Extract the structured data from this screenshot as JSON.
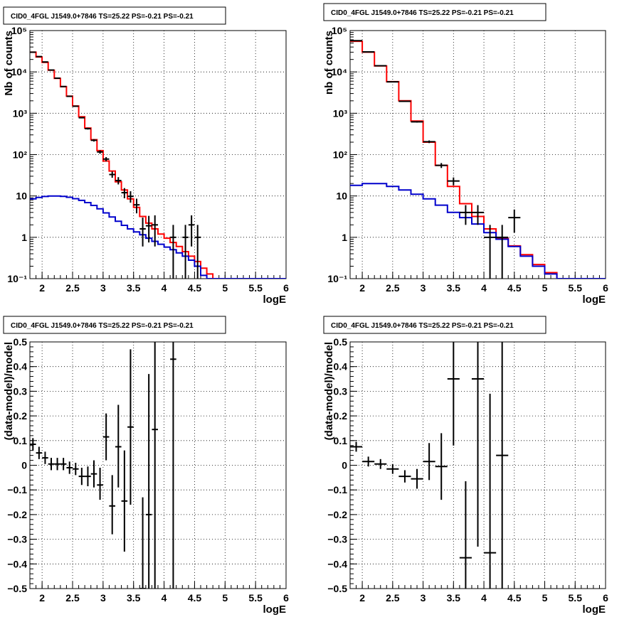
{
  "colors": {
    "model_total": "#ff0000",
    "model_source": "#0000cc",
    "data": "#000000",
    "grid": "#000000"
  },
  "chart_data": [
    {
      "id": "tl",
      "type": "line",
      "title": "CID0_4FGL J1549.0+7846 TS=25.22 PS=-0.21 PS=-0.21",
      "xlabel": "logE",
      "ylabel": "Nb of counts",
      "xlim": [
        1.8,
        6.0
      ],
      "ylim": [
        0.1,
        100000
      ],
      "yscale": "log",
      "grid": true,
      "xticks": [
        "2",
        "2.5",
        "3",
        "3.5",
        "4",
        "4.5",
        "5",
        "5.5",
        "6"
      ],
      "yticks": [
        "10⁻¹",
        "1",
        "10",
        "10²",
        "10³",
        "10⁴",
        "10⁵"
      ],
      "series": [
        {
          "role": "total",
          "style": "step",
          "bin_width": 0.1,
          "x": [
            1.85,
            1.95,
            2.05,
            2.15,
            2.25,
            2.35,
            2.45,
            2.55,
            2.65,
            2.75,
            2.85,
            2.95,
            3.05,
            3.15,
            3.25,
            3.35,
            3.45,
            3.55,
            3.65,
            3.75,
            3.85,
            3.95,
            4.05,
            4.15,
            4.25,
            4.35,
            4.45,
            4.55,
            4.65,
            4.75,
            4.85,
            4.95,
            5.05,
            5.15,
            5.25,
            5.35,
            5.45,
            5.55,
            5.65,
            5.75,
            5.85,
            5.95
          ],
          "values": [
            30000,
            23000,
            17000,
            11000,
            7000,
            4400,
            2600,
            1500,
            820,
            440,
            230,
            125,
            70,
            40,
            22,
            14,
            8.5,
            5.3,
            3.2,
            2.2,
            1.6,
            1.2,
            0.95,
            0.75,
            0.6,
            0.45,
            0.35,
            0.26,
            0.18,
            0.13,
            0.1,
            0.1,
            0.1,
            0.1,
            0.1,
            0.1,
            0.1,
            0.1,
            0.1,
            0.1,
            0.1,
            0.1
          ]
        },
        {
          "role": "source",
          "style": "step",
          "bin_width": 0.1,
          "x": [
            1.85,
            1.95,
            2.05,
            2.15,
            2.25,
            2.35,
            2.45,
            2.55,
            2.65,
            2.75,
            2.85,
            2.95,
            3.05,
            3.15,
            3.25,
            3.35,
            3.45,
            3.55,
            3.65,
            3.75,
            3.85,
            3.95,
            4.05,
            4.15,
            4.25,
            4.35,
            4.45,
            4.55,
            4.65,
            4.75,
            4.85,
            4.95,
            5.05,
            5.15,
            5.25,
            5.35,
            5.45,
            5.55,
            5.65,
            5.75,
            5.85,
            5.95
          ],
          "values": [
            8.5,
            9.2,
            9.7,
            10,
            10,
            9.8,
            9.3,
            8.6,
            7.8,
            6.9,
            5.9,
            4.9,
            3.9,
            3.1,
            2.45,
            1.95,
            1.6,
            1.35,
            1.15,
            0.95,
            0.8,
            0.68,
            0.58,
            0.5,
            0.42,
            0.35,
            0.28,
            0.2,
            0.12,
            0.1,
            0.1,
            0.1,
            0.1,
            0.1,
            0.1,
            0.1,
            0.1,
            0.1,
            0.1,
            0.1,
            0.1,
            0.1
          ]
        }
      ],
      "points": [
        {
          "x": 1.85,
          "y": 30000,
          "xerr": 0.05,
          "ylo": 29800,
          "yhi": 30200
        },
        {
          "x": 1.95,
          "y": 23500,
          "xerr": 0.05,
          "ylo": 23300,
          "yhi": 23700
        },
        {
          "x": 2.05,
          "y": 17400,
          "xerr": 0.05,
          "ylo": 17200,
          "yhi": 17600
        },
        {
          "x": 2.15,
          "y": 11100,
          "xerr": 0.05,
          "ylo": 10950,
          "yhi": 11250
        },
        {
          "x": 2.25,
          "y": 7050,
          "xerr": 0.05,
          "ylo": 6950,
          "yhi": 7150
        },
        {
          "x": 2.35,
          "y": 4430,
          "xerr": 0.05,
          "ylo": 4360,
          "yhi": 4500
        },
        {
          "x": 2.45,
          "y": 2570,
          "xerr": 0.05,
          "ylo": 2520,
          "yhi": 2620
        },
        {
          "x": 2.55,
          "y": 1480,
          "xerr": 0.05,
          "ylo": 1440,
          "yhi": 1520
        },
        {
          "x": 2.65,
          "y": 780,
          "xerr": 0.05,
          "ylo": 752,
          "yhi": 808
        },
        {
          "x": 2.75,
          "y": 425,
          "xerr": 0.05,
          "ylo": 404,
          "yhi": 446
        },
        {
          "x": 2.85,
          "y": 222,
          "xerr": 0.05,
          "ylo": 207,
          "yhi": 237
        },
        {
          "x": 2.95,
          "y": 116,
          "xerr": 0.05,
          "ylo": 105,
          "yhi": 127
        },
        {
          "x": 3.05,
          "y": 78,
          "xerr": 0.05,
          "ylo": 69,
          "yhi": 87
        },
        {
          "x": 3.15,
          "y": 33,
          "xerr": 0.05,
          "ylo": 27.5,
          "yhi": 39
        },
        {
          "x": 3.25,
          "y": 23.6,
          "xerr": 0.05,
          "ylo": 19,
          "yhi": 28.5
        },
        {
          "x": 3.35,
          "y": 12,
          "xerr": 0.05,
          "ylo": 8.8,
          "yhi": 15.5
        },
        {
          "x": 3.45,
          "y": 9.8,
          "xerr": 0.05,
          "ylo": 6.9,
          "yhi": 13
        },
        {
          "x": 3.55,
          "y": 6.1,
          "xerr": 0.05,
          "ylo": 3.8,
          "yhi": 8.6
        },
        {
          "x": 3.65,
          "y": 1.6,
          "xerr": 0.05,
          "ylo": 0.6,
          "yhi": 3.0
        },
        {
          "x": 3.75,
          "y": 1.9,
          "xerr": 0.05,
          "ylo": 0.75,
          "yhi": 3.3
        },
        {
          "x": 3.85,
          "y": 2.0,
          "xerr": 0.05,
          "ylo": 0.6,
          "yhi": 3.4
        },
        {
          "x": 4.15,
          "y": 1.0,
          "xerr": 0.05,
          "ylo": 0.1,
          "yhi": 2.0
        },
        {
          "x": 4.35,
          "y": 1.0,
          "xerr": 0.05,
          "ylo": 0.1,
          "yhi": 2.0
        },
        {
          "x": 4.45,
          "y": 2.0,
          "xerr": 0.05,
          "ylo": 0.6,
          "yhi": 3.4
        },
        {
          "x": 4.55,
          "y": 1.0,
          "xerr": 0.05,
          "ylo": 0.1,
          "yhi": 2.0
        }
      ]
    },
    {
      "id": "tr",
      "type": "line",
      "title": "CID0_4FGL J1549.0+7846 TS=25.22 PS=-0.21 PS=-0.21",
      "xlabel": "logE",
      "ylabel": "nb of counts",
      "xlim": [
        1.8,
        6.0
      ],
      "ylim": [
        0.1,
        100000
      ],
      "yscale": "log",
      "grid": true,
      "xticks": [
        "2",
        "2.5",
        "3",
        "3.5",
        "4",
        "4.5",
        "5",
        "5.5",
        "6"
      ],
      "yticks": [
        "10⁻¹",
        "1",
        "10",
        "10²",
        "10³",
        "10⁴",
        "10⁵"
      ],
      "series": [
        {
          "role": "total",
          "style": "step",
          "bin_width": 0.2,
          "x": [
            1.9,
            2.1,
            2.3,
            2.5,
            2.7,
            2.9,
            3.1,
            3.3,
            3.5,
            3.7,
            3.9,
            4.1,
            4.3,
            4.5,
            4.7,
            4.9,
            5.1,
            5.3,
            5.5,
            5.7,
            5.9
          ],
          "values": [
            55000,
            30000,
            14000,
            5800,
            2000,
            650,
            200,
            55,
            17,
            6.5,
            3.2,
            1.6,
            0.95,
            0.62,
            0.38,
            0.22,
            0.14,
            0.1,
            0.1,
            0.1,
            0.1
          ]
        },
        {
          "role": "source",
          "style": "step",
          "bin_width": 0.2,
          "x": [
            1.9,
            2.1,
            2.3,
            2.5,
            2.7,
            2.9,
            3.1,
            3.3,
            3.5,
            3.7,
            3.9,
            4.1,
            4.3,
            4.5,
            4.7,
            4.9,
            5.1,
            5.3,
            5.5,
            5.7,
            5.9
          ],
          "values": [
            18,
            20,
            20,
            17,
            14,
            11,
            8.5,
            6,
            4,
            3,
            2.1,
            1.3,
            0.9,
            0.6,
            0.35,
            0.2,
            0.13,
            0.1,
            0.1,
            0.1,
            0.1
          ]
        }
      ],
      "points": [
        {
          "x": 1.9,
          "y": 57000,
          "xerr": 0.1,
          "ylo": 56700,
          "yhi": 57300
        },
        {
          "x": 2.1,
          "y": 30500,
          "xerr": 0.1,
          "ylo": 30300,
          "yhi": 30700
        },
        {
          "x": 2.3,
          "y": 14100,
          "xerr": 0.1,
          "ylo": 13950,
          "yhi": 14250
        },
        {
          "x": 2.5,
          "y": 5750,
          "xerr": 0.1,
          "ylo": 5670,
          "yhi": 5830
        },
        {
          "x": 2.7,
          "y": 1950,
          "xerr": 0.1,
          "ylo": 1905,
          "yhi": 1995
        },
        {
          "x": 2.9,
          "y": 620,
          "xerr": 0.1,
          "ylo": 595,
          "yhi": 645
        },
        {
          "x": 3.1,
          "y": 205,
          "xerr": 0.1,
          "ylo": 190,
          "yhi": 220
        },
        {
          "x": 3.3,
          "y": 55,
          "xerr": 0.1,
          "ylo": 47.5,
          "yhi": 62.5
        },
        {
          "x": 3.5,
          "y": 23,
          "xerr": 0.1,
          "ylo": 18,
          "yhi": 28
        },
        {
          "x": 3.7,
          "y": 4,
          "xerr": 0.1,
          "ylo": 2,
          "yhi": 6
        },
        {
          "x": 3.9,
          "y": 4,
          "xerr": 0.1,
          "ylo": 2,
          "yhi": 6
        },
        {
          "x": 4.1,
          "y": 1.0,
          "xerr": 0.1,
          "ylo": 0.1,
          "yhi": 2.0
        },
        {
          "x": 4.3,
          "y": 1.0,
          "xerr": 0.1,
          "ylo": 0.1,
          "yhi": 2.0
        },
        {
          "x": 4.5,
          "y": 3,
          "xerr": 0.1,
          "ylo": 1.3,
          "yhi": 4.7
        }
      ]
    },
    {
      "id": "bl",
      "type": "scatter",
      "title": "CID0_4FGL J1549.0+7846 TS=25.22 PS=-0.21 PS=-0.21",
      "xlabel": "logE",
      "ylabel": "(data-model)/model",
      "xlim": [
        1.8,
        6.0
      ],
      "ylim": [
        -0.5,
        0.5
      ],
      "yscale": "linear",
      "grid": true,
      "xticks": [
        "2",
        "2.5",
        "3",
        "3.5",
        "4",
        "4.5",
        "5",
        "5.5",
        "6"
      ],
      "yticks": [
        "−0.5",
        "−0.4",
        "−0.3",
        "−0.2",
        "−0.1",
        "0",
        "0.1",
        "0.2",
        "0.3",
        "0.4",
        "0.5"
      ],
      "points": [
        {
          "x": 1.85,
          "y": 0.085,
          "xerr": 0.05,
          "ylo": 0.06,
          "yhi": 0.11
        },
        {
          "x": 1.95,
          "y": 0.05,
          "xerr": 0.05,
          "ylo": 0.025,
          "yhi": 0.075
        },
        {
          "x": 2.05,
          "y": 0.03,
          "xerr": 0.05,
          "ylo": 0.005,
          "yhi": 0.055
        },
        {
          "x": 2.15,
          "y": 0.005,
          "xerr": 0.05,
          "ylo": -0.02,
          "yhi": 0.03
        },
        {
          "x": 2.25,
          "y": 0.005,
          "xerr": 0.05,
          "ylo": -0.02,
          "yhi": 0.03
        },
        {
          "x": 2.35,
          "y": 0.005,
          "xerr": 0.05,
          "ylo": -0.02,
          "yhi": 0.03
        },
        {
          "x": 2.45,
          "y": -0.01,
          "xerr": 0.05,
          "ylo": -0.035,
          "yhi": 0.015
        },
        {
          "x": 2.55,
          "y": -0.015,
          "xerr": 0.05,
          "ylo": -0.04,
          "yhi": 0.01
        },
        {
          "x": 2.65,
          "y": -0.045,
          "xerr": 0.05,
          "ylo": -0.08,
          "yhi": -0.01
        },
        {
          "x": 2.75,
          "y": -0.045,
          "xerr": 0.05,
          "ylo": -0.085,
          "yhi": -0.005
        },
        {
          "x": 2.85,
          "y": -0.035,
          "xerr": 0.05,
          "ylo": -0.09,
          "yhi": 0.02
        },
        {
          "x": 2.95,
          "y": -0.08,
          "xerr": 0.05,
          "ylo": -0.14,
          "yhi": -0.01
        },
        {
          "x": 3.05,
          "y": 0.115,
          "xerr": 0.05,
          "ylo": 0.02,
          "yhi": 0.21
        },
        {
          "x": 3.15,
          "y": -0.165,
          "xerr": 0.05,
          "ylo": -0.28,
          "yhi": -0.04
        },
        {
          "x": 3.25,
          "y": 0.075,
          "xerr": 0.05,
          "ylo": -0.09,
          "yhi": 0.245
        },
        {
          "x": 3.35,
          "y": -0.145,
          "xerr": 0.05,
          "ylo": -0.35,
          "yhi": 0.06
        },
        {
          "x": 3.45,
          "y": 0.155,
          "xerr": 0.05,
          "ylo": -0.16,
          "yhi": 0.47
        },
        {
          "x": 3.65,
          "y": -0.5,
          "xerr": 0.05,
          "ylo": -0.5,
          "yhi": -0.13
        },
        {
          "x": 3.75,
          "y": -0.2,
          "xerr": 0.05,
          "ylo": -0.5,
          "yhi": 0.37
        },
        {
          "x": 3.85,
          "y": 0.145,
          "xerr": 0.05,
          "ylo": -0.5,
          "yhi": 0.5
        },
        {
          "x": 4.15,
          "y": 0.43,
          "xerr": 0.05,
          "ylo": -0.5,
          "yhi": 0.5
        }
      ]
    },
    {
      "id": "br",
      "type": "scatter",
      "title": "CID0_4FGL J1549.0+7846 TS=25.22 PS=-0.21 PS=-0.21",
      "xlabel": "logE",
      "ylabel": "(data-model)/model",
      "xlim": [
        1.8,
        6.0
      ],
      "ylim": [
        -0.5,
        0.5
      ],
      "yscale": "linear",
      "grid": true,
      "xticks": [
        "2",
        "2.5",
        "3",
        "3.5",
        "4",
        "4.5",
        "5",
        "5.5",
        "6"
      ],
      "yticks": [
        "−0.5",
        "−0.4",
        "−0.3",
        "−0.2",
        "−0.1",
        "0",
        "0.1",
        "0.2",
        "0.3",
        "0.4",
        "0.5"
      ],
      "points": [
        {
          "x": 1.9,
          "y": 0.075,
          "xerr": 0.1,
          "ylo": 0.055,
          "yhi": 0.095
        },
        {
          "x": 2.1,
          "y": 0.015,
          "xerr": 0.1,
          "ylo": -0.005,
          "yhi": 0.035
        },
        {
          "x": 2.3,
          "y": 0.005,
          "xerr": 0.1,
          "ylo": -0.015,
          "yhi": 0.025
        },
        {
          "x": 2.5,
          "y": -0.015,
          "xerr": 0.1,
          "ylo": -0.035,
          "yhi": 0.005
        },
        {
          "x": 2.7,
          "y": -0.045,
          "xerr": 0.1,
          "ylo": -0.07,
          "yhi": -0.02
        },
        {
          "x": 2.9,
          "y": -0.055,
          "xerr": 0.1,
          "ylo": -0.095,
          "yhi": -0.015
        },
        {
          "x": 3.1,
          "y": 0.015,
          "xerr": 0.1,
          "ylo": -0.06,
          "yhi": 0.09
        },
        {
          "x": 3.3,
          "y": -0.005,
          "xerr": 0.1,
          "ylo": -0.14,
          "yhi": 0.13
        },
        {
          "x": 3.5,
          "y": 0.35,
          "xerr": 0.1,
          "ylo": 0.08,
          "yhi": 0.5
        },
        {
          "x": 3.7,
          "y": -0.375,
          "xerr": 0.1,
          "ylo": -0.5,
          "yhi": -0.065
        },
        {
          "x": 3.9,
          "y": 0.35,
          "xerr": 0.1,
          "ylo": -0.33,
          "yhi": 0.5
        },
        {
          "x": 4.1,
          "y": -0.355,
          "xerr": 0.1,
          "ylo": -0.5,
          "yhi": 0.29
        },
        {
          "x": 4.3,
          "y": 0.04,
          "xerr": 0.1,
          "ylo": -0.5,
          "yhi": 0.5
        }
      ]
    }
  ]
}
